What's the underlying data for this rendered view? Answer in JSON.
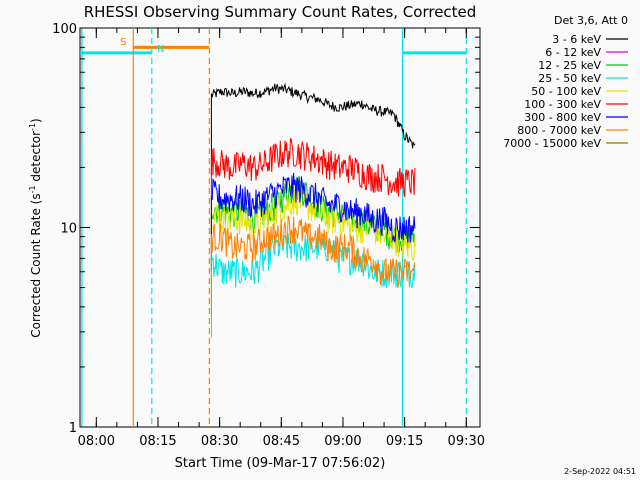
{
  "chart_data": {
    "type": "line",
    "title": "RHESSI Observing Summary Count Rates, Corrected",
    "xlabel": "Start Time (09-Mar-17 07:56:02)",
    "ylabel_prefix": "Corrected Count Rate (s",
    "ylabel_sup": "-1",
    "ylabel_mid": " detector",
    "ylabel_suffix": ")",
    "yscale": "log",
    "ylim": [
      1,
      100
    ],
    "xlim": [
      "07:56:02",
      "09:33:20"
    ],
    "y_ticks": [
      "1",
      "10",
      "100"
    ],
    "x_ticks": [
      "08:00",
      "08:15",
      "08:30",
      "08:45",
      "09:00",
      "09:15",
      "09:30"
    ],
    "legend_title": "Det 3,6, Att 0",
    "legend_position": "top-right",
    "timestamp": "2-Sep-2022 04:51",
    "data_start": "08:28:00",
    "data_end": "09:17:30",
    "series": [
      {
        "name": "3 - 6 keV",
        "color": "#000000",
        "values": [
          46,
          48,
          47,
          48,
          47,
          48,
          50,
          49,
          47,
          45,
          44,
          41,
          40,
          41,
          42,
          39,
          38,
          37,
          29,
          25
        ]
      },
      {
        "name": "6 - 12 keV",
        "color": "#e000e0",
        "values": [
          null,
          null,
          null,
          null,
          null,
          null,
          null,
          null,
          null,
          null,
          null,
          null,
          null,
          null,
          null,
          null,
          null,
          null,
          null,
          null
        ]
      },
      {
        "name": "12 - 25 keV",
        "color": "#00cc00",
        "values": [
          13,
          12,
          12,
          12,
          11,
          12,
          13,
          15,
          16,
          15,
          13,
          12,
          12,
          11,
          11,
          10,
          10,
          9,
          9,
          9
        ]
      },
      {
        "name": "25 - 50 keV",
        "color": "#00e5e5",
        "values": [
          7,
          6,
          6,
          6,
          6,
          7,
          8,
          8,
          8,
          8,
          8,
          8,
          7,
          7,
          7,
          6,
          6,
          6,
          6,
          6
        ]
      },
      {
        "name": "50 - 100 keV",
        "color": "#e5e500",
        "values": [
          12,
          11,
          11,
          11,
          10,
          11,
          12,
          13,
          14,
          13,
          12,
          11,
          11,
          10,
          10,
          10,
          9,
          9,
          8,
          8
        ]
      },
      {
        "name": "100 - 300 keV",
        "color": "#ff0000",
        "values": [
          22,
          21,
          20,
          21,
          20,
          21,
          23,
          24,
          24,
          23,
          22,
          21,
          20,
          20,
          19,
          18,
          18,
          17,
          17,
          17
        ]
      },
      {
        "name": "300 - 800 keV",
        "color": "#0000ff",
        "values": [
          15,
          14,
          14,
          14,
          13,
          14,
          15,
          16,
          16,
          15,
          14,
          13,
          13,
          12,
          12,
          11,
          11,
          10,
          10,
          10
        ]
      },
      {
        "name": "800 - 7000 keV",
        "color": "#ff8000",
        "values": [
          9,
          9,
          8,
          8,
          8,
          9,
          9,
          10,
          10,
          9,
          9,
          8,
          8,
          8,
          7,
          7,
          6,
          6,
          6,
          6
        ]
      },
      {
        "name": "7000 - 15000 keV",
        "color": "#808000",
        "values": [
          null,
          null,
          null,
          null,
          null,
          null,
          null,
          null,
          null,
          null,
          null,
          null,
          null,
          null,
          null,
          null,
          null,
          null,
          null,
          null
        ]
      }
    ],
    "markers": [
      {
        "label": "S",
        "time": "08:09:00",
        "color": "#ff8000",
        "style": "solid"
      },
      {
        "label": "N",
        "time": "08:13:30",
        "color": "#00e5e5",
        "style": "dashed"
      },
      {
        "label": "",
        "time": "08:27:30",
        "color": "#ff8000",
        "style": "dashed"
      },
      {
        "label": "",
        "time": "09:14:30",
        "color": "#00e5e5",
        "style": "solid"
      },
      {
        "label": "",
        "time": "09:30:00",
        "color": "#00e5e5",
        "style": "dashed"
      },
      {
        "label": "",
        "time": "07:56:30",
        "color": "#00e5e5",
        "style": "solid"
      }
    ],
    "bars": [
      {
        "start": "07:56:02",
        "end": "08:13:30",
        "color": "#00e5e5",
        "level": 75
      },
      {
        "start": "08:09:00",
        "end": "08:27:30",
        "color": "#ff8000",
        "level": 80
      },
      {
        "start": "09:14:30",
        "end": "09:30:00",
        "color": "#00e5e5",
        "level": 75
      }
    ]
  }
}
